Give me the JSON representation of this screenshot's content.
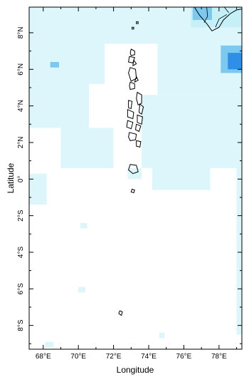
{
  "map": {
    "x_axis_label": "Longitude",
    "y_axis_label": "Latitude",
    "lon_range": [
      67.2,
      79.3
    ],
    "lat_range": [
      -9.3,
      9.4
    ],
    "lon_ticks": [
      {
        "value": 68,
        "label": "68°E"
      },
      {
        "value": 70,
        "label": "70°E"
      },
      {
        "value": 72,
        "label": "72°E"
      },
      {
        "value": 74,
        "label": "74°E"
      },
      {
        "value": 76,
        "label": "76°E"
      },
      {
        "value": 78,
        "label": "78°E"
      }
    ],
    "lat_ticks": [
      {
        "value": 8,
        "label": "8°N"
      },
      {
        "value": 6,
        "label": "6°N"
      },
      {
        "value": 4,
        "label": "4°N"
      },
      {
        "value": 2,
        "label": "2°N"
      },
      {
        "value": 0,
        "label": "0°"
      },
      {
        "value": -2,
        "label": "2°S"
      },
      {
        "value": -4,
        "label": "4°S"
      },
      {
        "value": -6,
        "label": "6°S"
      },
      {
        "value": -8,
        "label": "8°S"
      }
    ],
    "colors": {
      "light_cyan": "#dcf6fb",
      "pale_cyan": "#c6f0f8",
      "sky_blue": "#7cc8ee",
      "bright_blue": "#2f8fe6",
      "coast": "#000000",
      "frame": "#000000"
    },
    "data_patches": [
      {
        "lon": [
          67.2,
          79.3
        ],
        "lat": [
          7.4,
          9.4
        ],
        "level": "light_cyan"
      },
      {
        "lon": [
          67.2,
          71.5
        ],
        "lat": [
          5.2,
          7.4
        ],
        "level": "light_cyan"
      },
      {
        "lon": [
          74.5,
          79.3
        ],
        "lat": [
          4.6,
          7.4
        ],
        "level": "light_cyan"
      },
      {
        "lon": [
          67.2,
          70.6
        ],
        "lat": [
          2.8,
          5.2
        ],
        "level": "light_cyan"
      },
      {
        "lon": [
          73.6,
          79.3
        ],
        "lat": [
          0.6,
          4.6
        ],
        "level": "light_cyan"
      },
      {
        "lon": [
          69.0,
          72.0
        ],
        "lat": [
          0.6,
          2.8
        ],
        "level": "light_cyan"
      },
      {
        "lon": [
          74.2,
          77.5
        ],
        "lat": [
          -0.6,
          0.6
        ],
        "level": "light_cyan"
      },
      {
        "lon": [
          67.2,
          68.2
        ],
        "lat": [
          -1.4,
          0.3
        ],
        "level": "light_cyan"
      },
      {
        "lon": [
          72.8,
          73.6
        ],
        "lat": [
          0.0,
          0.6
        ],
        "level": "light_cyan"
      },
      {
        "lon": [
          79.0,
          79.3
        ],
        "lat": [
          -8.5,
          2.0
        ],
        "level": "light_cyan"
      },
      {
        "lon": [
          68.4,
          68.9
        ],
        "lat": [
          6.1,
          6.4
        ],
        "level": "sky_blue"
      },
      {
        "lon": [
          76.4,
          79.3
        ],
        "lat": [
          8.3,
          9.4
        ],
        "level": "pale_cyan"
      },
      {
        "lon": [
          76.5,
          77.6
        ],
        "lat": [
          8.7,
          9.4
        ],
        "level": "sky_blue"
      },
      {
        "lon": [
          78.1,
          79.3
        ],
        "lat": [
          5.8,
          7.3
        ],
        "level": "sky_blue"
      },
      {
        "lon": [
          78.5,
          79.3
        ],
        "lat": [
          6.0,
          6.9
        ],
        "level": "bright_blue"
      },
      {
        "lon": [
          70.0,
          70.4
        ],
        "lat": [
          -6.2,
          -5.9
        ],
        "level": "light_cyan"
      },
      {
        "lon": [
          70.1,
          70.5
        ],
        "lat": [
          -2.7,
          -2.4
        ],
        "level": "light_cyan"
      },
      {
        "lon": [
          74.6,
          74.9
        ],
        "lat": [
          -8.7,
          -8.4
        ],
        "level": "light_cyan"
      },
      {
        "lon": [
          68.1,
          68.6
        ],
        "lat": [
          -9.2,
          -8.9
        ],
        "level": "light_cyan"
      }
    ],
    "islands": [
      [
        [
          73.0,
          7.1
        ],
        [
          73.2,
          7.0
        ],
        [
          73.2,
          6.8
        ],
        [
          73.0,
          6.75
        ],
        [
          72.95,
          6.9
        ]
      ],
      [
        [
          72.9,
          6.7
        ],
        [
          73.2,
          6.65
        ],
        [
          73.1,
          6.35
        ],
        [
          72.85,
          6.4
        ]
      ],
      [
        [
          73.15,
          6.5
        ],
        [
          73.3,
          6.3
        ],
        [
          73.1,
          6.2
        ]
      ],
      [
        [
          72.95,
          6.1
        ],
        [
          73.25,
          6.0
        ],
        [
          73.3,
          5.5
        ],
        [
          73.0,
          5.35
        ],
        [
          72.85,
          5.8
        ]
      ],
      [
        [
          73.3,
          5.6
        ],
        [
          73.4,
          5.4
        ],
        [
          73.2,
          5.3
        ]
      ],
      [
        [
          72.95,
          5.3
        ],
        [
          73.2,
          5.2
        ],
        [
          73.2,
          4.95
        ],
        [
          72.95,
          4.9
        ],
        [
          72.9,
          5.1
        ]
      ],
      [
        [
          73.35,
          4.75
        ],
        [
          73.6,
          4.6
        ],
        [
          73.6,
          4.15
        ],
        [
          73.4,
          4.05
        ],
        [
          73.3,
          4.4
        ]
      ],
      [
        [
          73.5,
          4.1
        ],
        [
          73.7,
          3.95
        ],
        [
          73.6,
          3.55
        ],
        [
          73.45,
          3.65
        ]
      ],
      [
        [
          72.85,
          4.3
        ],
        [
          73.05,
          4.25
        ],
        [
          73.0,
          3.85
        ],
        [
          72.85,
          3.9
        ]
      ],
      [
        [
          72.8,
          3.8
        ],
        [
          73.15,
          3.65
        ],
        [
          73.1,
          3.3
        ],
        [
          72.8,
          3.4
        ]
      ],
      [
        [
          73.35,
          3.5
        ],
        [
          73.65,
          3.4
        ],
        [
          73.6,
          3.0
        ],
        [
          73.35,
          3.1
        ]
      ],
      [
        [
          72.8,
          3.2
        ],
        [
          73.1,
          3.1
        ],
        [
          73.0,
          2.75
        ],
        [
          72.75,
          2.85
        ]
      ],
      [
        [
          73.3,
          3.0
        ],
        [
          73.55,
          2.9
        ],
        [
          73.45,
          2.6
        ],
        [
          73.25,
          2.7
        ]
      ],
      [
        [
          72.9,
          2.55
        ],
        [
          73.3,
          2.45
        ],
        [
          73.25,
          2.15
        ],
        [
          72.95,
          2.1
        ],
        [
          72.85,
          2.3
        ]
      ],
      [
        [
          73.3,
          2.1
        ],
        [
          73.55,
          2.05
        ],
        [
          73.5,
          1.75
        ],
        [
          73.3,
          1.8
        ]
      ],
      [
        [
          72.95,
          0.8
        ],
        [
          73.3,
          0.75
        ],
        [
          73.4,
          0.4
        ],
        [
          73.1,
          0.3
        ],
        [
          72.85,
          0.5
        ]
      ],
      [
        [
          73.05,
          -0.55
        ],
        [
          73.2,
          -0.6
        ],
        [
          73.15,
          -0.75
        ],
        [
          73.0,
          -0.7
        ]
      ],
      [
        [
          72.35,
          -7.2
        ],
        [
          72.5,
          -7.25
        ],
        [
          72.45,
          -7.45
        ],
        [
          72.3,
          -7.35
        ]
      ],
      [
        [
          73.05,
          8.3
        ],
        [
          73.15,
          8.3
        ],
        [
          73.15,
          8.2
        ],
        [
          73.05,
          8.2
        ]
      ],
      [
        [
          73.3,
          8.6
        ],
        [
          73.4,
          8.6
        ],
        [
          73.4,
          8.5
        ],
        [
          73.3,
          8.5
        ]
      ]
    ],
    "mainland": [
      [
        76.6,
        9.4
      ],
      [
        76.9,
        8.95
      ],
      [
        77.3,
        8.5
      ],
      [
        77.6,
        8.1
      ],
      [
        78.0,
        8.3
      ],
      [
        78.25,
        8.7
      ],
      [
        78.65,
        9.05
      ],
      [
        79.0,
        9.25
      ],
      [
        79.3,
        9.3
      ],
      [
        79.3,
        9.4
      ]
    ],
    "borders": [
      [
        [
          77.15,
          8.55
        ],
        [
          77.35,
          8.9
        ],
        [
          77.3,
          9.4
        ]
      ],
      [
        [
          77.8,
          8.3
        ],
        [
          78.0,
          8.75
        ],
        [
          78.45,
          9.0
        ]
      ],
      [
        [
          78.3,
          9.4
        ],
        [
          78.55,
          9.1
        ]
      ]
    ]
  }
}
